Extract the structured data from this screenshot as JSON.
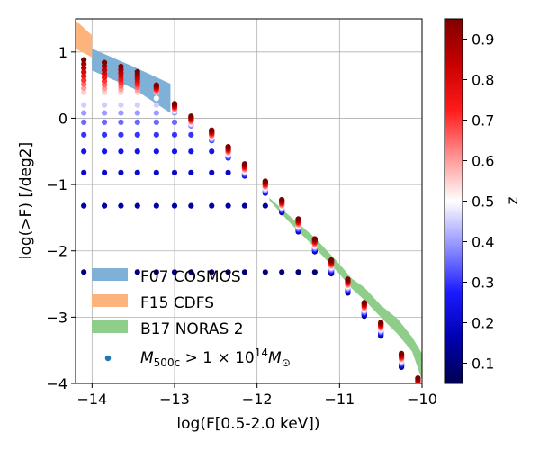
{
  "chart_data": {
    "type": "scatter",
    "title": "",
    "xlabel": "log(F[0.5-2.0 keV])",
    "ylabel": "log(>F) [/deg2]",
    "xlim": [
      -14.2,
      -10.0
    ],
    "ylim": [
      -4.0,
      1.5
    ],
    "xticks": [
      -14,
      -13,
      -12,
      -11,
      -10
    ],
    "yticks": [
      1,
      0,
      -1,
      -2,
      -3,
      -4
    ],
    "xtick_labels": [
      "−14",
      "−13",
      "−12",
      "−11",
      "−10"
    ],
    "ytick_labels": [
      "1",
      "0",
      "−1",
      "−2",
      "−3",
      "−4"
    ],
    "grid": true,
    "legend_placement": "lower-left",
    "colorbar": {
      "label": "z",
      "range": [
        0.05,
        0.95
      ],
      "ticks": [
        0.1,
        0.2,
        0.3,
        0.4,
        0.5,
        0.6,
        0.7,
        0.8,
        0.9
      ],
      "tick_labels": [
        "0.1",
        "0.2",
        "0.3",
        "0.4",
        "0.5",
        "0.6",
        "0.7",
        "0.8",
        "0.9"
      ],
      "colormap": "seismic"
    },
    "bands": [
      {
        "name": "F07 COSMOS",
        "color": "#7fb0d8",
        "upper": [
          [
            -14.0,
            1.05
          ],
          [
            -13.5,
            0.78
          ],
          [
            -13.05,
            0.52
          ]
        ],
        "lower": [
          [
            -14.0,
            0.72
          ],
          [
            -13.5,
            0.45
          ],
          [
            -13.05,
            0.08
          ]
        ]
      },
      {
        "name": "F15 CDFS",
        "color": "#fdb47c",
        "upper": [
          [
            -14.2,
            1.48
          ],
          [
            -14.0,
            1.25
          ]
        ],
        "lower": [
          [
            -14.2,
            1.05
          ],
          [
            -14.0,
            0.92
          ]
        ]
      },
      {
        "name": "B17 NORAS 2",
        "color": "#8fcd8a",
        "upper": [
          [
            -11.85,
            -1.2
          ],
          [
            -11.6,
            -1.48
          ],
          [
            -11.3,
            -1.8
          ],
          [
            -11.0,
            -2.2
          ],
          [
            -10.85,
            -2.42
          ],
          [
            -10.7,
            -2.55
          ],
          [
            -10.5,
            -2.82
          ],
          [
            -10.3,
            -3.02
          ],
          [
            -10.12,
            -3.3
          ],
          [
            -10.0,
            -3.55
          ]
        ],
        "lower": [
          [
            -11.85,
            -1.24
          ],
          [
            -11.6,
            -1.58
          ],
          [
            -11.3,
            -1.95
          ],
          [
            -11.0,
            -2.35
          ],
          [
            -10.85,
            -2.57
          ],
          [
            -10.7,
            -2.74
          ],
          [
            -10.5,
            -3.0
          ],
          [
            -10.3,
            -3.25
          ],
          [
            -10.12,
            -3.52
          ],
          [
            -10.0,
            -3.95
          ]
        ]
      }
    ],
    "scatter_legend_label": "M_{500c} > 1 × 10^{14} M_⊙",
    "scatter": {
      "x": [
        -14.1,
        -13.85,
        -13.65,
        -13.45,
        -13.22,
        -13.0,
        -12.8,
        -12.55,
        -12.35,
        -12.15,
        -11.9,
        -11.7,
        -11.5,
        -11.3,
        -11.1,
        -10.9,
        -10.7,
        -10.5,
        -10.25,
        -10.05
      ],
      "z_levels": [
        0.1,
        0.15,
        0.2,
        0.25,
        0.3,
        0.35,
        0.4,
        0.45,
        0.5,
        0.55,
        0.6,
        0.65,
        0.7,
        0.75,
        0.8,
        0.85,
        0.9,
        0.95
      ],
      "top_curve": [
        0.88,
        0.84,
        0.78,
        0.7,
        0.5,
        0.22,
        0.03,
        -0.18,
        -0.43,
        -0.69,
        -0.95,
        -1.23,
        -1.52,
        -1.82,
        -2.14,
        -2.43,
        -2.78,
        -3.08,
        -3.55,
        -3.92
      ],
      "low_levels": [
        -2.32,
        -1.32,
        -0.82,
        -0.5,
        -0.25,
        -0.06,
        0.08,
        0.2,
        0.3,
        0.39
      ]
    }
  }
}
